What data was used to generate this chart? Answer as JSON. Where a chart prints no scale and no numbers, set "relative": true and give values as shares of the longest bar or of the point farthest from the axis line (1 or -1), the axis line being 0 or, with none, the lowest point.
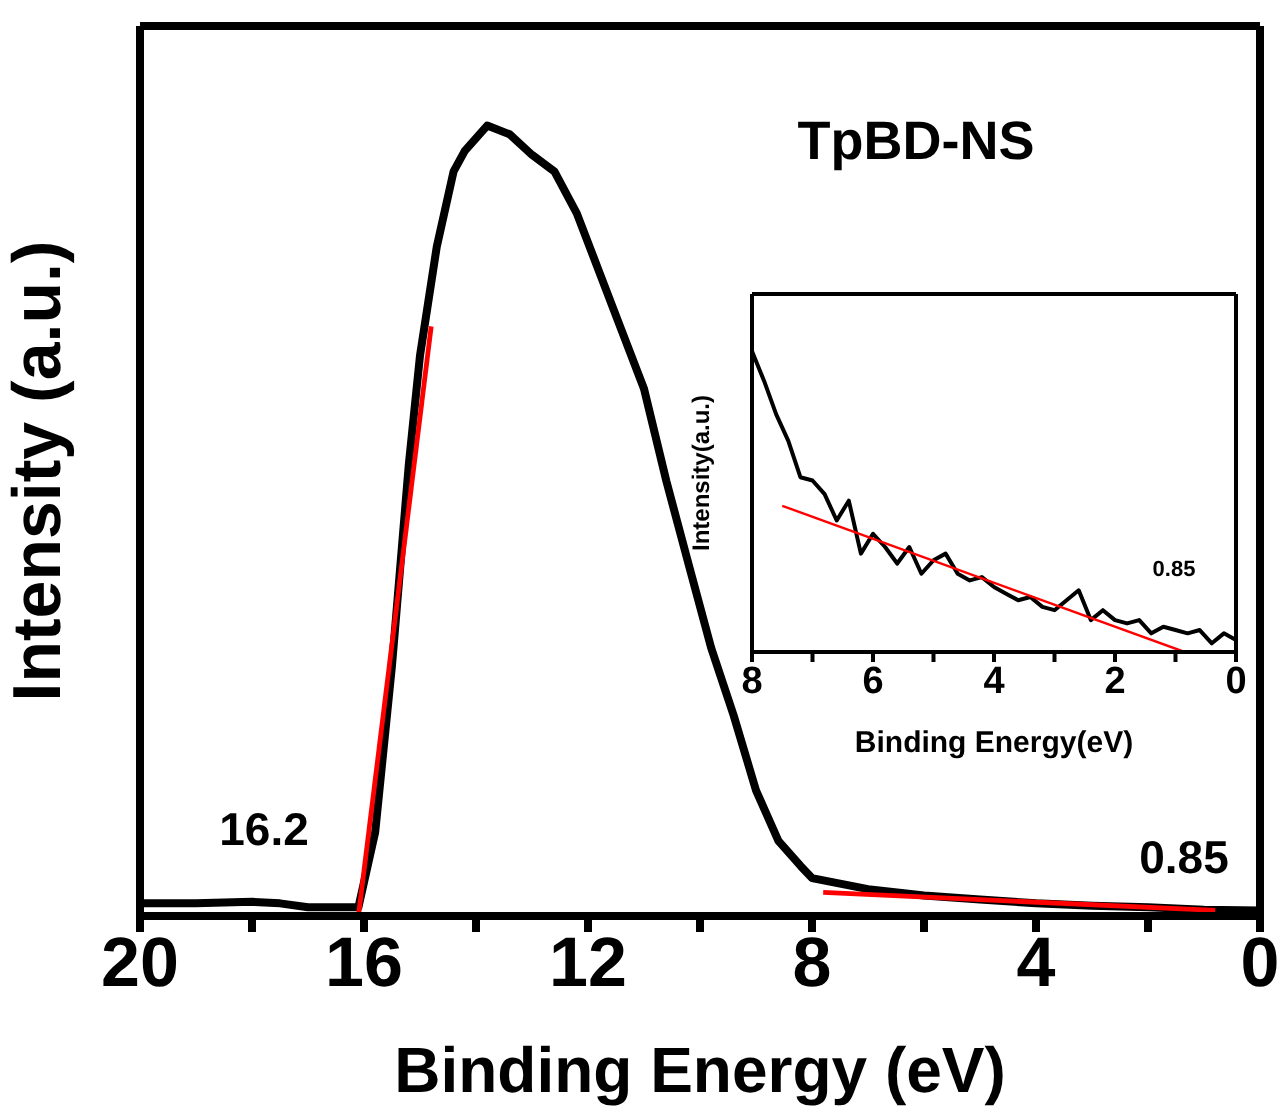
{
  "chart_data": [
    {
      "type": "line",
      "title": "TpBD-NS",
      "xlabel": "Binding Energy (eV)",
      "ylabel": "Intensity (a.u.)",
      "relative": true,
      "xlim": [
        20,
        0
      ],
      "xticks": [
        20,
        {
          "value": 18,
          "label": null
        },
        16,
        {
          "value": 14,
          "label": null
        },
        12,
        {
          "value": 10,
          "label": null
        },
        8,
        {
          "value": 6,
          "label": null
        },
        4,
        {
          "value": 2,
          "label": null
        },
        0
      ],
      "grid": false,
      "legend": false,
      "marker": "none",
      "line_style": "solid",
      "annotations": [
        "16.2",
        "0.85"
      ],
      "series": [
        {
          "color": "#000000",
          "x": [
            20,
            19,
            18,
            17.5,
            17,
            16.5,
            16.1,
            15.8,
            15.5,
            15.2,
            15.0,
            14.7,
            14.4,
            14.2,
            13.8,
            13.4,
            13.0,
            12.6,
            12.2,
            11.8,
            11.4,
            11.0,
            10.6,
            10.2,
            9.8,
            9.4,
            9.0,
            8.6,
            8.2,
            8.0,
            7,
            6,
            5,
            4,
            3,
            2,
            1,
            0
          ],
          "values": [
            0.016,
            0.016,
            0.018,
            0.016,
            0.011,
            0.011,
            0.011,
            0.106,
            0.317,
            0.571,
            0.709,
            0.847,
            0.942,
            0.968,
            1.0,
            0.989,
            0.963,
            0.942,
            0.889,
            0.815,
            0.741,
            0.667,
            0.55,
            0.444,
            0.339,
            0.254,
            0.159,
            0.095,
            0.063,
            0.048,
            0.034,
            0.026,
            0.021,
            0.016,
            0.013,
            0.011,
            0.008,
            0.007
          ]
        },
        {
          "color": "#ff0000",
          "x": [
            16.1,
            14.8
          ],
          "values": [
            0,
            0.746
          ]
        },
        {
          "color": "#ff0000",
          "x": [
            7.8,
            0.8
          ],
          "values": [
            0.03,
            0.007
          ]
        }
      ]
    },
    {
      "type": "line",
      "xlabel": "Binding Energy(eV)",
      "ylabel": "Intensity(a.u.)",
      "relative": true,
      "xlim": [
        8,
        0
      ],
      "xticks": [
        8,
        {
          "value": 7,
          "label": null
        },
        6,
        {
          "value": 5,
          "label": null
        },
        4,
        {
          "value": 3,
          "label": null
        },
        2,
        {
          "value": 1,
          "label": null
        },
        0
      ],
      "grid": false,
      "legend": false,
      "marker": "none",
      "line_style": "solid",
      "annotations": [
        "0.85"
      ],
      "series": [
        {
          "color": "#000000",
          "x": [
            8.0,
            7.8,
            7.6,
            7.4,
            7.2,
            7.0,
            6.8,
            6.6,
            6.4,
            6.2,
            6.0,
            5.8,
            5.6,
            5.4,
            5.2,
            5.0,
            4.8,
            4.6,
            4.4,
            4.2,
            4.0,
            3.8,
            3.6,
            3.4,
            3.2,
            3.0,
            2.8,
            2.6,
            2.4,
            2.2,
            2.0,
            1.8,
            1.6,
            1.4,
            1.2,
            1.0,
            0.8,
            0.6,
            0.4,
            0.2,
            0.0
          ],
          "values": [
            1.0,
            0.901,
            0.79,
            0.702,
            0.581,
            0.57,
            0.525,
            0.437,
            0.503,
            0.327,
            0.393,
            0.349,
            0.294,
            0.349,
            0.26,
            0.305,
            0.327,
            0.26,
            0.238,
            0.249,
            0.216,
            0.194,
            0.172,
            0.183,
            0.15,
            0.139,
            0.172,
            0.205,
            0.106,
            0.139,
            0.106,
            0.095,
            0.106,
            0.062,
            0.084,
            0.073,
            0.062,
            0.073,
            0.029,
            0.062,
            0.04
          ]
        },
        {
          "color": "#ff0000",
          "x": [
            7.5,
            0.85
          ],
          "values": [
            0.486,
            0
          ]
        }
      ]
    }
  ]
}
